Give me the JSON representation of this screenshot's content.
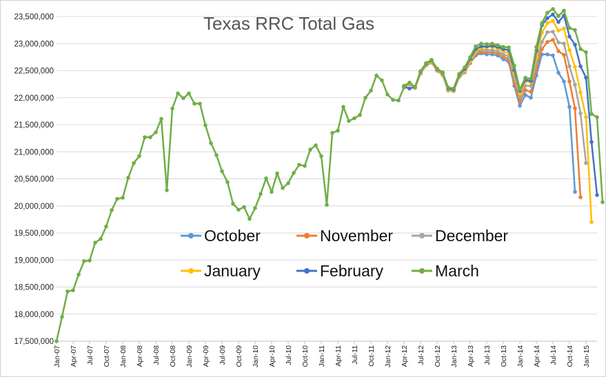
{
  "chart_data": {
    "type": "line",
    "title": "Texas RRC Total Gas",
    "xlabel": "",
    "ylabel": "",
    "ylim": [
      17500000,
      23500000
    ],
    "ytick_values": [
      17500000,
      18000000,
      18500000,
      19000000,
      19500000,
      20000000,
      20500000,
      21000000,
      21500000,
      22000000,
      22500000,
      23000000,
      23500000
    ],
    "ytick_labels": [
      "17,500,000",
      "18,000,000",
      "18,500,000",
      "19,000,000",
      "19,500,000",
      "20,000,000",
      "20,500,000",
      "21,000,000",
      "21,500,000",
      "22,000,000",
      "22,500,000",
      "23,000,000",
      "23,500,000"
    ],
    "grid": "horizontal",
    "legend_position": "center",
    "x_labels": [
      "Jan-07",
      "Apr-07",
      "Jul-07",
      "Oct-07",
      "Jan-08",
      "Apr-08",
      "Jul-08",
      "Oct-08",
      "Jan-09",
      "Apr-09",
      "Jul-09",
      "Oct-09",
      "Jan-10",
      "Apr-10",
      "Jul-10",
      "Oct-10",
      "Jan-11",
      "Apr-11",
      "Jul-11",
      "Oct-11",
      "Jan-12",
      "Apr-12",
      "Jul-12",
      "Oct-12",
      "Jan-13",
      "Apr-13",
      "Jul-13",
      "Oct-13",
      "Jan-14",
      "Apr-14",
      "Jul-14",
      "Oct-14",
      "Jan-15"
    ],
    "common": {
      "start": "Jan-07",
      "values": [
        17500000,
        17950000,
        18420000,
        18440000,
        18730000,
        18980000,
        18990000,
        19320000,
        19390000,
        19620000,
        19920000,
        20130000,
        20150000,
        20520000,
        20790000,
        20920000,
        21270000,
        21270000,
        21360000,
        21610000,
        20290000,
        21800000,
        22080000,
        21990000,
        22080000,
        21890000,
        21890000,
        21490000,
        21160000,
        20940000,
        20640000,
        20440000,
        20040000,
        19930000,
        19980000,
        19760000,
        19960000,
        20220000,
        20510000,
        20260000,
        20600000,
        20330000,
        20420000,
        20610000,
        20760000,
        20740000,
        21040000,
        21120000,
        20920000,
        20020000,
        21350000,
        21390000,
        21830000,
        21570000,
        21620000,
        21680000,
        22000000,
        22130000,
        22410000,
        22320000,
        22060000,
        21960000,
        21950000,
        22190000
      ],
      "end": "Apr-12"
    },
    "series": [
      {
        "name": "October",
        "color": "#5b9bd5",
        "start": "Apr-12",
        "values": [
          22190000,
          22250000,
          22180000,
          22450000,
          22600000,
          22650000,
          22500000,
          22420000,
          22150000,
          22160000,
          22380000,
          22470000,
          22640000,
          22780000,
          22820000,
          22800000,
          22800000,
          22780000,
          22710000,
          22660000,
          22220000,
          21850000,
          22050000,
          22000000,
          22410000,
          22800000,
          22800000,
          22780000,
          22460000,
          22300000,
          21830000,
          20260000
        ]
      },
      {
        "name": "November",
        "color": "#ed7d31",
        "start": "Apr-12",
        "values": [
          22190000,
          22250000,
          22180000,
          22450000,
          22600000,
          22650000,
          22500000,
          22420000,
          22150000,
          22160000,
          22380000,
          22470000,
          22640000,
          22800000,
          22850000,
          22840000,
          22840000,
          22820000,
          22760000,
          22700000,
          22280000,
          21930000,
          22140000,
          22110000,
          22520000,
          22900000,
          23030000,
          23070000,
          22860000,
          22790000,
          22300000,
          21800000,
          20160000
        ]
      },
      {
        "name": "December",
        "color": "#a5a5a5",
        "start": "Apr-12",
        "values": [
          22210000,
          22260000,
          22180000,
          22460000,
          22610000,
          22660000,
          22510000,
          22430000,
          22130000,
          22120000,
          22380000,
          22480000,
          22660000,
          22830000,
          22890000,
          22880000,
          22880000,
          22860000,
          22800000,
          22760000,
          22370000,
          22020000,
          22220000,
          22220000,
          22630000,
          23030000,
          23210000,
          23220000,
          23020000,
          23000000,
          22580000,
          22240000,
          21710000,
          20790000
        ]
      },
      {
        "name": "January",
        "color": "#ffc000",
        "start": "Apr-12",
        "values": [
          22220000,
          22270000,
          22190000,
          22470000,
          22620000,
          22670000,
          22520000,
          22440000,
          22150000,
          22130000,
          22400000,
          22500000,
          22680000,
          22860000,
          22920000,
          22930000,
          22940000,
          22910000,
          22860000,
          22820000,
          22450000,
          22080000,
          22300000,
          22290000,
          22750000,
          23200000,
          23380000,
          23420000,
          23240000,
          23280000,
          22880000,
          22570000,
          22100000,
          21640000,
          19700000
        ]
      },
      {
        "name": "February",
        "color": "#4472c4",
        "start": "Apr-12",
        "values": [
          22200000,
          22170000,
          22200000,
          22480000,
          22630000,
          22690000,
          22530000,
          22460000,
          22170000,
          22150000,
          22420000,
          22530000,
          22720000,
          22900000,
          22950000,
          22950000,
          22960000,
          22940000,
          22900000,
          22880000,
          22510000,
          22130000,
          22330000,
          22310000,
          22870000,
          23340000,
          23470000,
          23540000,
          23400000,
          23520000,
          23130000,
          22980000,
          22580000,
          22370000,
          21180000,
          20200000
        ]
      },
      {
        "name": "March",
        "color": "#70ad47",
        "start": "Apr-12",
        "values": [
          22220000,
          22280000,
          22200000,
          22490000,
          22640000,
          22700000,
          22540000,
          22470000,
          22190000,
          22170000,
          22440000,
          22560000,
          22750000,
          22950000,
          23000000,
          22990000,
          23000000,
          22970000,
          22940000,
          22930000,
          22590000,
          22150000,
          22370000,
          22350000,
          22940000,
          23380000,
          23570000,
          23640000,
          23510000,
          23610000,
          23290000,
          23250000,
          22900000,
          22840000,
          21700000,
          21640000,
          20070000
        ]
      }
    ]
  }
}
